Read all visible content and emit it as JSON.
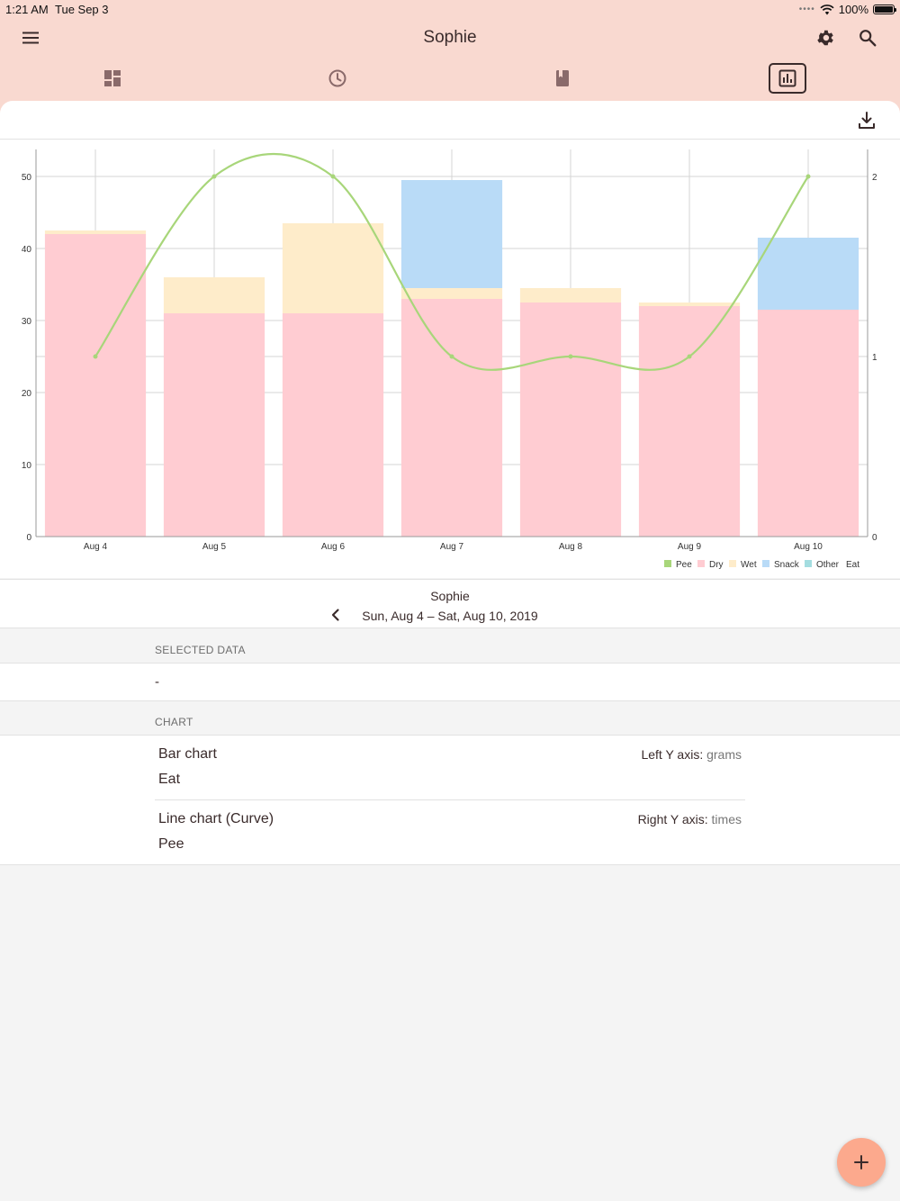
{
  "status_bar": {
    "time": "1:21 AM",
    "date": "Tue Sep 3",
    "battery": "100%"
  },
  "header": {
    "title": "Sophie",
    "icons": [
      "menu-icon",
      "gear-icon",
      "search-icon"
    ],
    "tabs": [
      {
        "icon": "dashboard-icon",
        "active": false
      },
      {
        "icon": "clock-icon",
        "active": false
      },
      {
        "icon": "book-icon",
        "active": false
      },
      {
        "icon": "bar-chart-icon",
        "active": true
      }
    ]
  },
  "colors": {
    "header_bg": "#f9d9d0",
    "dry": "#ffccd2",
    "wet": "#feecca",
    "snack": "#b9dbf7",
    "other": "#a4dde0",
    "pee_line": "#a8d67a",
    "fab": "#fca98d"
  },
  "chart_data": {
    "type": "bar",
    "stacked": true,
    "categories": [
      "Aug 4",
      "Aug 5",
      "Aug 6",
      "Aug 7",
      "Aug 8",
      "Aug 9",
      "Aug 10"
    ],
    "series": [
      {
        "name": "Dry",
        "values": [
          42,
          31,
          31,
          33,
          32.5,
          32,
          31.5
        ]
      },
      {
        "name": "Wet",
        "values": [
          0.5,
          5,
          12.5,
          1.5,
          2,
          0.5,
          0
        ]
      },
      {
        "name": "Snack",
        "values": [
          0,
          0,
          0,
          15,
          0,
          0,
          10
        ]
      },
      {
        "name": "Other",
        "values": [
          0,
          0,
          0,
          0,
          0,
          0,
          0
        ]
      }
    ],
    "line_series": {
      "name": "Pee",
      "type": "line-curve",
      "values": [
        1,
        2,
        2,
        1,
        1,
        1,
        2
      ],
      "axis": "right"
    },
    "ylim_left": [
      0,
      55
    ],
    "yticks_left": [
      0,
      10,
      20,
      30,
      40,
      50
    ],
    "ylim_right": [
      0,
      2.2
    ],
    "yticks_right": [
      0,
      1,
      2
    ],
    "grid": true,
    "legend": [
      "Pee",
      "Dry",
      "Wet",
      "Snack",
      "Other",
      "Eat"
    ],
    "legend_placement": "bottom-right"
  },
  "period": {
    "name": "Sophie",
    "range": "Sun, Aug 4 – Sat, Aug 10, 2019"
  },
  "selected_data": {
    "header": "SELECTED DATA",
    "value": "-"
  },
  "chart_section": {
    "header": "CHART",
    "items": [
      {
        "type": "Bar chart",
        "series": "Eat",
        "axis_label": "Left Y axis:",
        "axis_unit": "grams"
      },
      {
        "type": "Line chart (Curve)",
        "series": "Pee",
        "axis_label": "Right Y axis:",
        "axis_unit": "times"
      }
    ]
  }
}
